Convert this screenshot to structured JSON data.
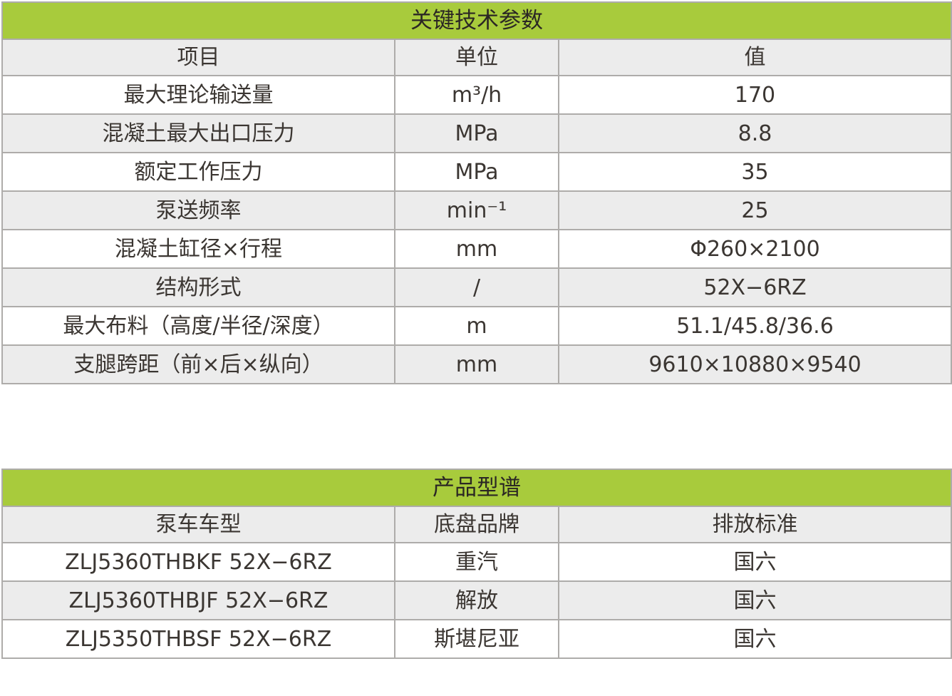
{
  "colors": {
    "accent_green": "#a8cb3c",
    "row_alt_gray": "#ececec",
    "grid_border": "#aeacaa",
    "text": "#3b3632"
  },
  "table_key_parameters": {
    "title": "关键技术参数",
    "columns": [
      "项目",
      "单位",
      "值"
    ],
    "rows": [
      {
        "item": "最大理论输送量",
        "unit": "m³/h",
        "value": "170"
      },
      {
        "item": "混凝土最大出口压力",
        "unit": "MPa",
        "value": "8.8"
      },
      {
        "item": "额定工作压力",
        "unit": "MPa",
        "value": "35"
      },
      {
        "item": "泵送频率",
        "unit": "min⁻¹",
        "value": "25"
      },
      {
        "item": "混凝土缸径×行程",
        "unit": "mm",
        "value": "Φ260×2100"
      },
      {
        "item": "结构形式",
        "unit": "/",
        "value": "52X−6RZ"
      },
      {
        "item": "最大布料（高度/半径/深度）",
        "unit": "m",
        "value": "51.1/45.8/36.6"
      },
      {
        "item": "支腿跨距（前×后×纵向）",
        "unit": "mm",
        "value": "9610×10880×9540"
      }
    ]
  },
  "table_product_spectrum": {
    "title": "产品型谱",
    "columns": [
      "泵车车型",
      "底盘品牌",
      "排放标准"
    ],
    "rows": [
      {
        "model": "ZLJ5360THBKF 52X−6RZ",
        "brand": "重汽",
        "standard": "国六"
      },
      {
        "model": "ZLJ5360THBJF 52X−6RZ",
        "brand": "解放",
        "standard": "国六"
      },
      {
        "model": "ZLJ5350THBSF 52X−6RZ",
        "brand": "斯堪尼亚",
        "standard": "国六"
      }
    ]
  }
}
